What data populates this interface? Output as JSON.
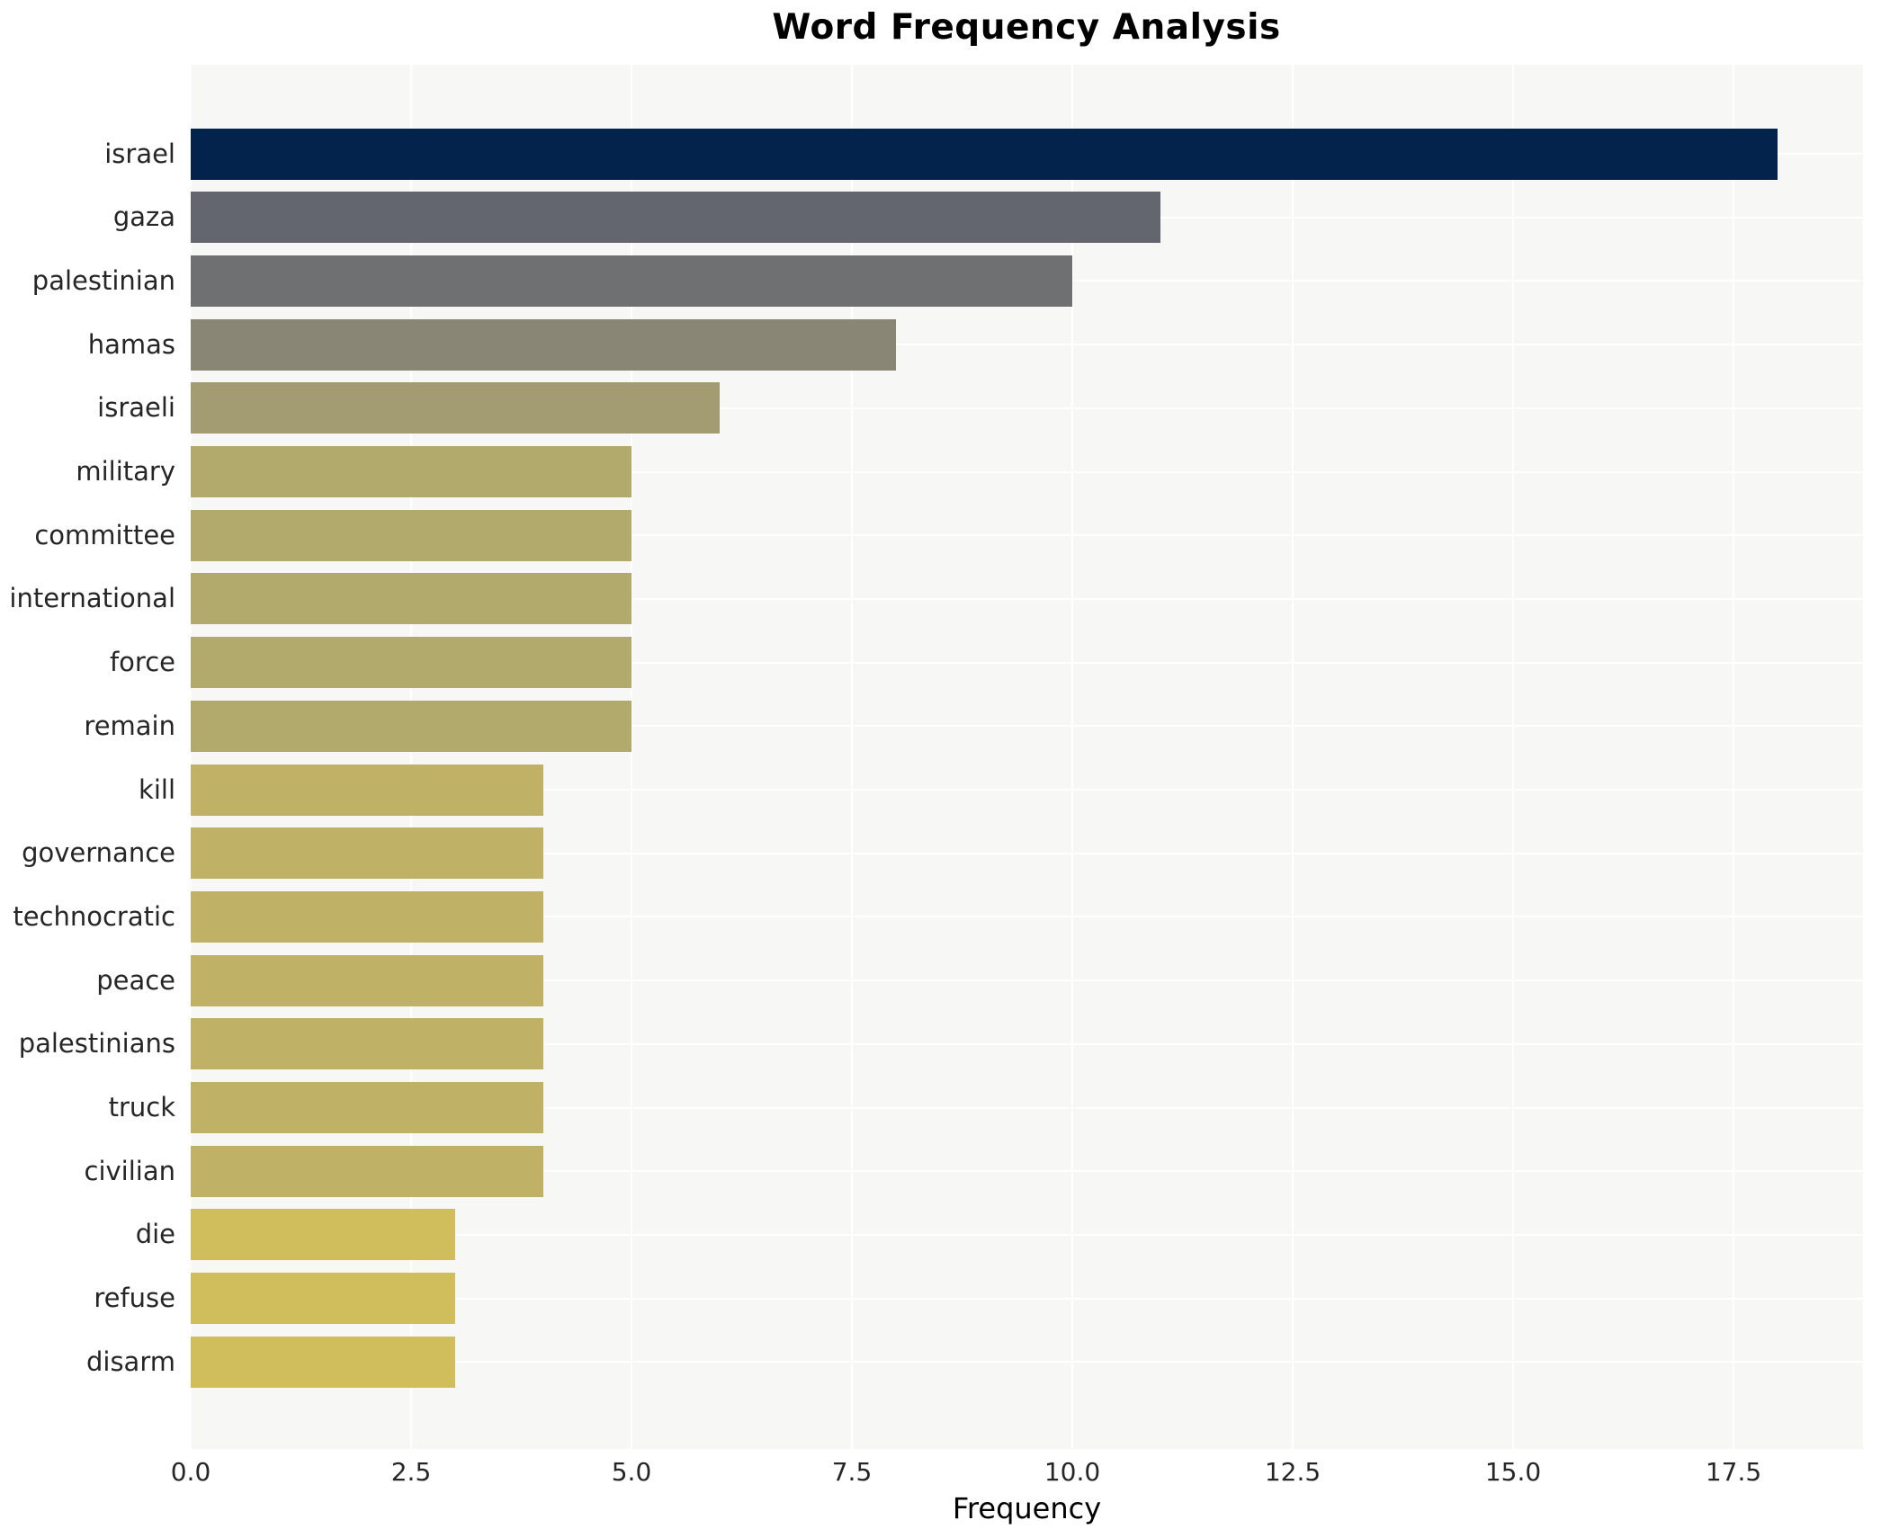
{
  "header": {
    "title": "Word Frequency Analysis"
  },
  "axes": {
    "x_label": "Frequency",
    "x_tick_labels": [
      "0.0",
      "2.5",
      "5.0",
      "7.5",
      "10.0",
      "12.5",
      "15.0",
      "17.5"
    ],
    "x_tick_values": [
      0,
      2.5,
      5,
      7.5,
      10,
      12.5,
      15,
      17.5
    ]
  },
  "chart_data": {
    "type": "bar",
    "orientation": "horizontal",
    "title": "Word Frequency Analysis",
    "xlabel": "Frequency",
    "ylabel": "",
    "xlim": [
      0,
      18.9
    ],
    "grid": true,
    "grid_color": "#ffffff",
    "plot_background": "#f7f7f6",
    "legend": "none",
    "categories": [
      "israel",
      "gaza",
      "palestinian",
      "hamas",
      "israeli",
      "military",
      "committee",
      "international",
      "force",
      "remain",
      "kill",
      "governance",
      "technocratic",
      "peace",
      "palestinians",
      "truck",
      "civilian",
      "die",
      "refuse",
      "disarm"
    ],
    "values": [
      18,
      11,
      10,
      8,
      6,
      5,
      5,
      5,
      5,
      5,
      4,
      4,
      4,
      4,
      4,
      4,
      4,
      3,
      3,
      3
    ],
    "bar_colors": [
      "#03234d",
      "#64666f",
      "#6f7071",
      "#8a8675",
      "#a39c73",
      "#b2aa6c",
      "#b2aa6c",
      "#b2aa6c",
      "#b2aa6c",
      "#b2aa6c",
      "#bfb166",
      "#bfb166",
      "#bfb166",
      "#bfb166",
      "#bfb166",
      "#bfb166",
      "#bfb166",
      "#cfbe5b",
      "#cfbe5b",
      "#cfbe5b"
    ]
  },
  "style_colors": {
    "plot_bg": "#f7f7f6",
    "grid": "#ffffff",
    "tick_text": "#262626",
    "title_text": "#000000"
  }
}
